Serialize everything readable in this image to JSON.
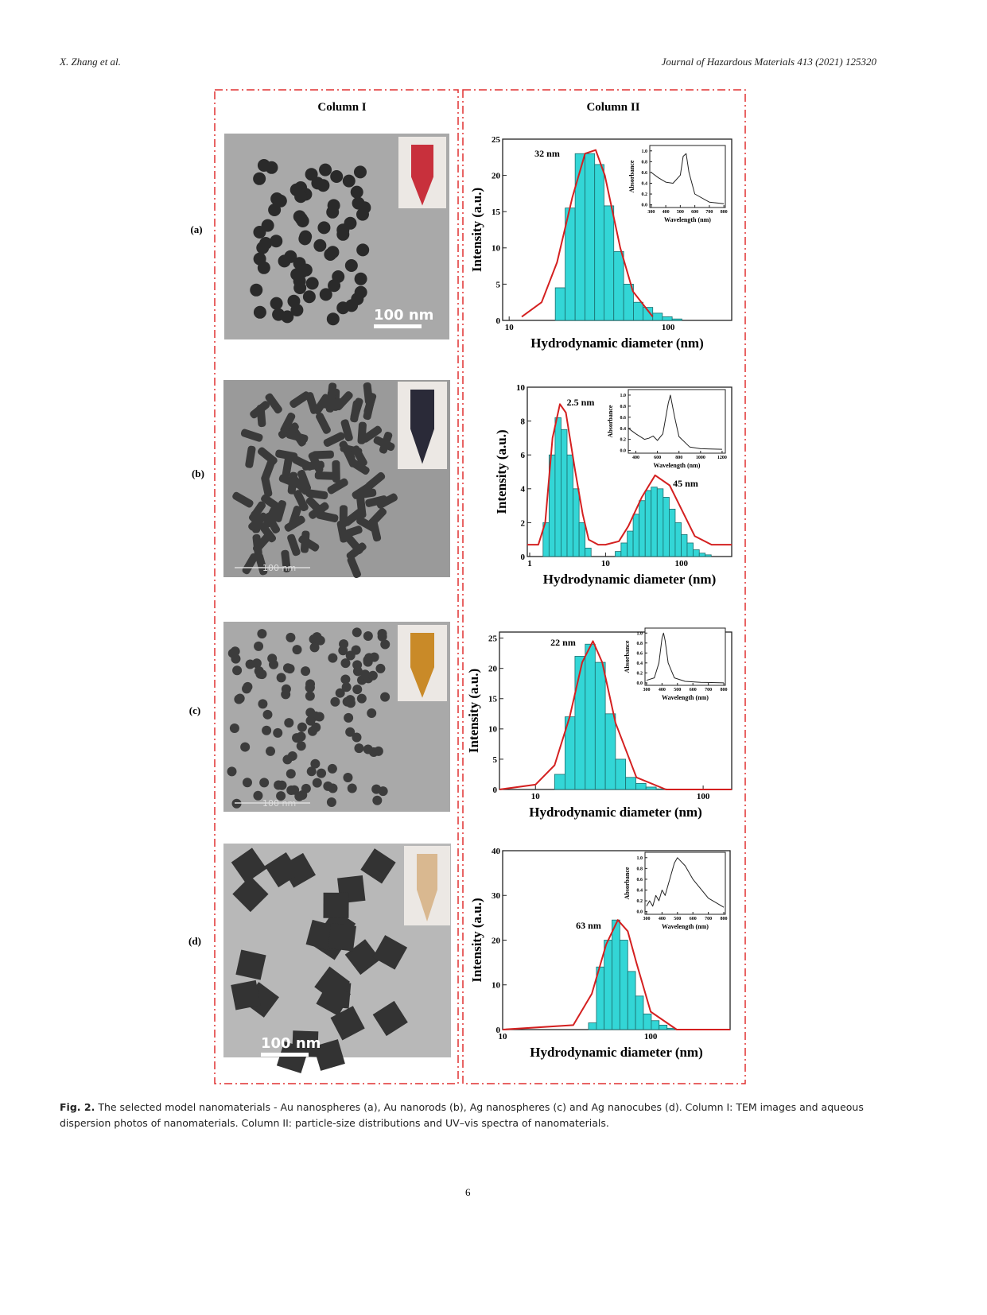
{
  "header": {
    "left": "X. Zhang et al.",
    "right": "Journal of Hazardous Materials 413 (2021) 125320"
  },
  "figure": {
    "column_headings": [
      "Column I",
      "Column II"
    ],
    "panels": [
      {
        "label": "(a)",
        "scale_bar": "100 nm",
        "chart": {
          "type": "histogram",
          "xscale": "log",
          "xlabel": "Hydrodynamic diameter (nm)",
          "ylabel": "Intensity (a.u.)",
          "peak_labels": [
            "32 nm"
          ],
          "bins": [
            19.5,
            22.5,
            26,
            30,
            34.5,
            39.5,
            45.5,
            52.5,
            60.5,
            69.5,
            80,
            92,
            106,
            122
          ],
          "values": [
            4.5,
            15.5,
            23,
            23,
            21.5,
            15.8,
            9.5,
            5,
            2.5,
            1.8,
            1,
            0.5,
            0.2
          ],
          "color": "#33d6d6",
          "xlim": [
            9.1,
            251
          ],
          "xticks": [
            10,
            100
          ],
          "ylim": [
            0,
            25
          ],
          "yticks": [
            0,
            5,
            10,
            15,
            20,
            25
          ],
          "fit": {
            "x": [
              12,
              16,
              20,
              25,
              30,
              35,
              40,
              50,
              60,
              80
            ],
            "values": [
              0.5,
              2.5,
              8,
              17,
              23,
              23.5,
              20,
              10,
              4,
              0.5
            ],
            "color": "#d42020"
          },
          "inset": {
            "type": "line",
            "xlabel": "Wavelength (nm)",
            "ylabel": "Absorbance",
            "xlim": [
              290,
              810
            ],
            "xticks": [
              300,
              400,
              500,
              600,
              700,
              800
            ],
            "ylim": [
              -0.05,
              1.1
            ],
            "yticks": [
              {
                "value": 0,
                "label": "0.0"
              },
              0.2,
              0.4,
              0.6,
              0.8,
              {
                "value": 1,
                "label": "1.0"
              }
            ],
            "x": [
              300,
              350,
              400,
              450,
              500,
              520,
              540,
              560,
              600,
              700,
              800
            ],
            "values": [
              0.6,
              0.5,
              0.42,
              0.4,
              0.55,
              0.9,
              0.95,
              0.6,
              0.2,
              0.05,
              0.02
            ],
            "color": "#222222"
          }
        }
      },
      {
        "label": "(b)",
        "scale_bar": "100 nm",
        "chart": {
          "type": "histogram",
          "xscale": "log",
          "xlabel": "Hydrodynamic diameter (nm)",
          "ylabel": "Intensity (a.u.)",
          "peak_labels": [
            "2.5 nm",
            "45 nm"
          ],
          "bins": [
            1.5,
            1.8,
            2.16,
            2.59,
            3.11,
            3.73,
            4.48,
            5.37,
            6.45,
            7.74,
            9.29,
            11.1,
            13.4,
            16,
            19.3,
            23.1,
            27.7,
            33.3,
            39.9,
            47.9,
            57.5,
            69,
            82.8,
            99.4,
            119,
            143,
            172,
            206,
            247
          ],
          "values": [
            2,
            6,
            8.2,
            7.5,
            6,
            4,
            2,
            0.5,
            0,
            0,
            0,
            0,
            0.3,
            0.8,
            1.5,
            2.5,
            3.3,
            3.9,
            4.1,
            4,
            3.5,
            2.8,
            2,
            1.3,
            0.8,
            0.4,
            0.2,
            0.1
          ],
          "color": "#33d6d6",
          "xlim": [
            0.93,
            460
          ],
          "xticks": [
            1,
            10,
            100
          ],
          "ylim": [
            0,
            10
          ],
          "yticks": [
            0,
            2,
            4,
            6,
            8,
            10
          ],
          "fit": {
            "x": [
              0.93,
              1.3,
              1.6,
              2,
              2.5,
              3,
              4,
              5,
              6,
              8,
              10,
              15,
              20,
              30,
              45,
              70,
              100,
              150,
              250,
              460
            ],
            "values": [
              0.7,
              0.7,
              2,
              7,
              9,
              8.5,
              5,
              2.5,
              1,
              0.7,
              0.7,
              0.9,
              1.8,
              3.5,
              4.8,
              4.2,
              2.8,
              1.2,
              0.7,
              0.7
            ],
            "color": "#d42020"
          },
          "inset": {
            "type": "line",
            "xlabel": "Wavelength (nm)",
            "ylabel": "Absorbance",
            "xlim": [
              330,
              1230
            ],
            "xticks": [
              400,
              600,
              800,
              1000,
              1200
            ],
            "ylim": [
              -0.05,
              1.1
            ],
            "yticks": [
              {
                "value": 0,
                "label": "0.0"
              },
              0.2,
              0.4,
              0.6,
              0.8,
              {
                "value": 1,
                "label": "1.0"
              }
            ],
            "x": [
              330,
              400,
              480,
              520,
              560,
              600,
              650,
              700,
              720,
              760,
              800,
              900,
              1000,
              1200
            ],
            "values": [
              0.4,
              0.3,
              0.2,
              0.22,
              0.26,
              0.18,
              0.3,
              0.85,
              1,
              0.6,
              0.25,
              0.06,
              0.03,
              0.02
            ],
            "color": "#222222"
          }
        }
      },
      {
        "label": "(c)",
        "scale_bar": "100 nm",
        "chart": {
          "type": "histogram",
          "xscale": "log",
          "xlabel": "Hydrodynamic diameter (nm)",
          "ylabel": "Intensity (a.u.)",
          "peak_labels": [
            "22 nm"
          ],
          "bins": [
            13,
            15,
            17.2,
            19.8,
            22.7,
            26.1,
            30,
            34.5,
            39.7,
            45.6,
            52.5,
            60.3
          ],
          "values": [
            2.5,
            12,
            22,
            24,
            21,
            12.5,
            5,
            2,
            1,
            0.4,
            0.1
          ],
          "color": "#33d6d6",
          "xlim": [
            6.1,
            148
          ],
          "xticks": [
            10,
            100
          ],
          "ylim": [
            0,
            26
          ],
          "yticks": [
            0,
            5,
            10,
            15,
            20,
            25
          ],
          "fit": {
            "x": [
              6.1,
              10,
              13,
              16,
              19,
              22,
              25,
              30,
              40,
              60,
              148
            ],
            "values": [
              0,
              0.8,
              4,
              12,
              21,
              24.5,
              21,
              11,
              2,
              0,
              0
            ],
            "color": "#d42020"
          },
          "inset": {
            "type": "line",
            "xlabel": "Wavelength (nm)",
            "ylabel": "Absorbance",
            "xlim": [
              290,
              810
            ],
            "xticks": [
              300,
              400,
              500,
              600,
              700,
              800
            ],
            "ylim": [
              -0.05,
              1.1
            ],
            "yticks": [
              {
                "value": 0,
                "label": "0.0"
              },
              0.2,
              0.4,
              0.6,
              0.8,
              {
                "value": 1,
                "label": "1.0"
              }
            ],
            "x": [
              300,
              350,
              380,
              400,
              410,
              420,
              440,
              480,
              550,
              650,
              800
            ],
            "values": [
              0.05,
              0.1,
              0.4,
              0.9,
              1,
              0.85,
              0.4,
              0.1,
              0.03,
              0.01,
              0
            ],
            "color": "#222222"
          }
        }
      },
      {
        "label": "(d)",
        "scale_bar": "100 nm",
        "chart": {
          "type": "histogram",
          "xscale": "log",
          "xlabel": "Hydrodynamic diameter (nm)",
          "ylabel": "Intensity (a.u.)",
          "peak_labels": [
            "63 nm"
          ],
          "bins": [
            38,
            43,
            48.5,
            54.8,
            61.9,
            70,
            79,
            89.3,
            101,
            114,
            129,
            145,
            164
          ],
          "values": [
            1.5,
            14,
            20,
            24.5,
            20,
            13,
            7.5,
            3.5,
            2,
            1,
            0.3,
            0.1
          ],
          "color": "#33d6d6",
          "xlim": [
            10,
            344
          ],
          "xticks": [
            10,
            100
          ],
          "ylim": [
            0,
            40
          ],
          "yticks": [
            0,
            10,
            20,
            30,
            40
          ],
          "fit": {
            "x": [
              10,
              30,
              40,
              50,
              60,
              70,
              80,
              100,
              150,
              344
            ],
            "values": [
              0,
              1,
              8,
              19,
              24.5,
              22,
              15,
              4,
              0,
              0
            ],
            "color": "#d42020"
          },
          "inset": {
            "type": "line",
            "xlabel": "Wavelength (nm)",
            "ylabel": "Absorbance",
            "xlim": [
              290,
              810
            ],
            "xticks": [
              300,
              400,
              500,
              600,
              700,
              800
            ],
            "ylim": [
              -0.05,
              1.1
            ],
            "yticks": [
              {
                "value": 0,
                "label": "0.0"
              },
              0.2,
              0.4,
              0.6,
              0.8,
              {
                "value": 1,
                "label": "1.0"
              }
            ],
            "x": [
              300,
              320,
              340,
              360,
              380,
              400,
              420,
              450,
              480,
              500,
              550,
              600,
              700,
              800
            ],
            "values": [
              0.1,
              0.2,
              0.1,
              0.3,
              0.2,
              0.4,
              0.3,
              0.6,
              0.9,
              1,
              0.85,
              0.6,
              0.25,
              0.08
            ],
            "color": "#222222"
          }
        }
      }
    ]
  },
  "caption": {
    "label": "Fig. 2.",
    "text": "The selected model nanomaterials - Au nanospheres (a), Au nanorods (b), Ag nanospheres (c) and Ag nanocubes (d). Column I: TEM images and aqueous dispersion photos of nanomaterials. Column II: particle-size distributions and UV–vis spectra of nanomaterials."
  },
  "page_number": "6"
}
